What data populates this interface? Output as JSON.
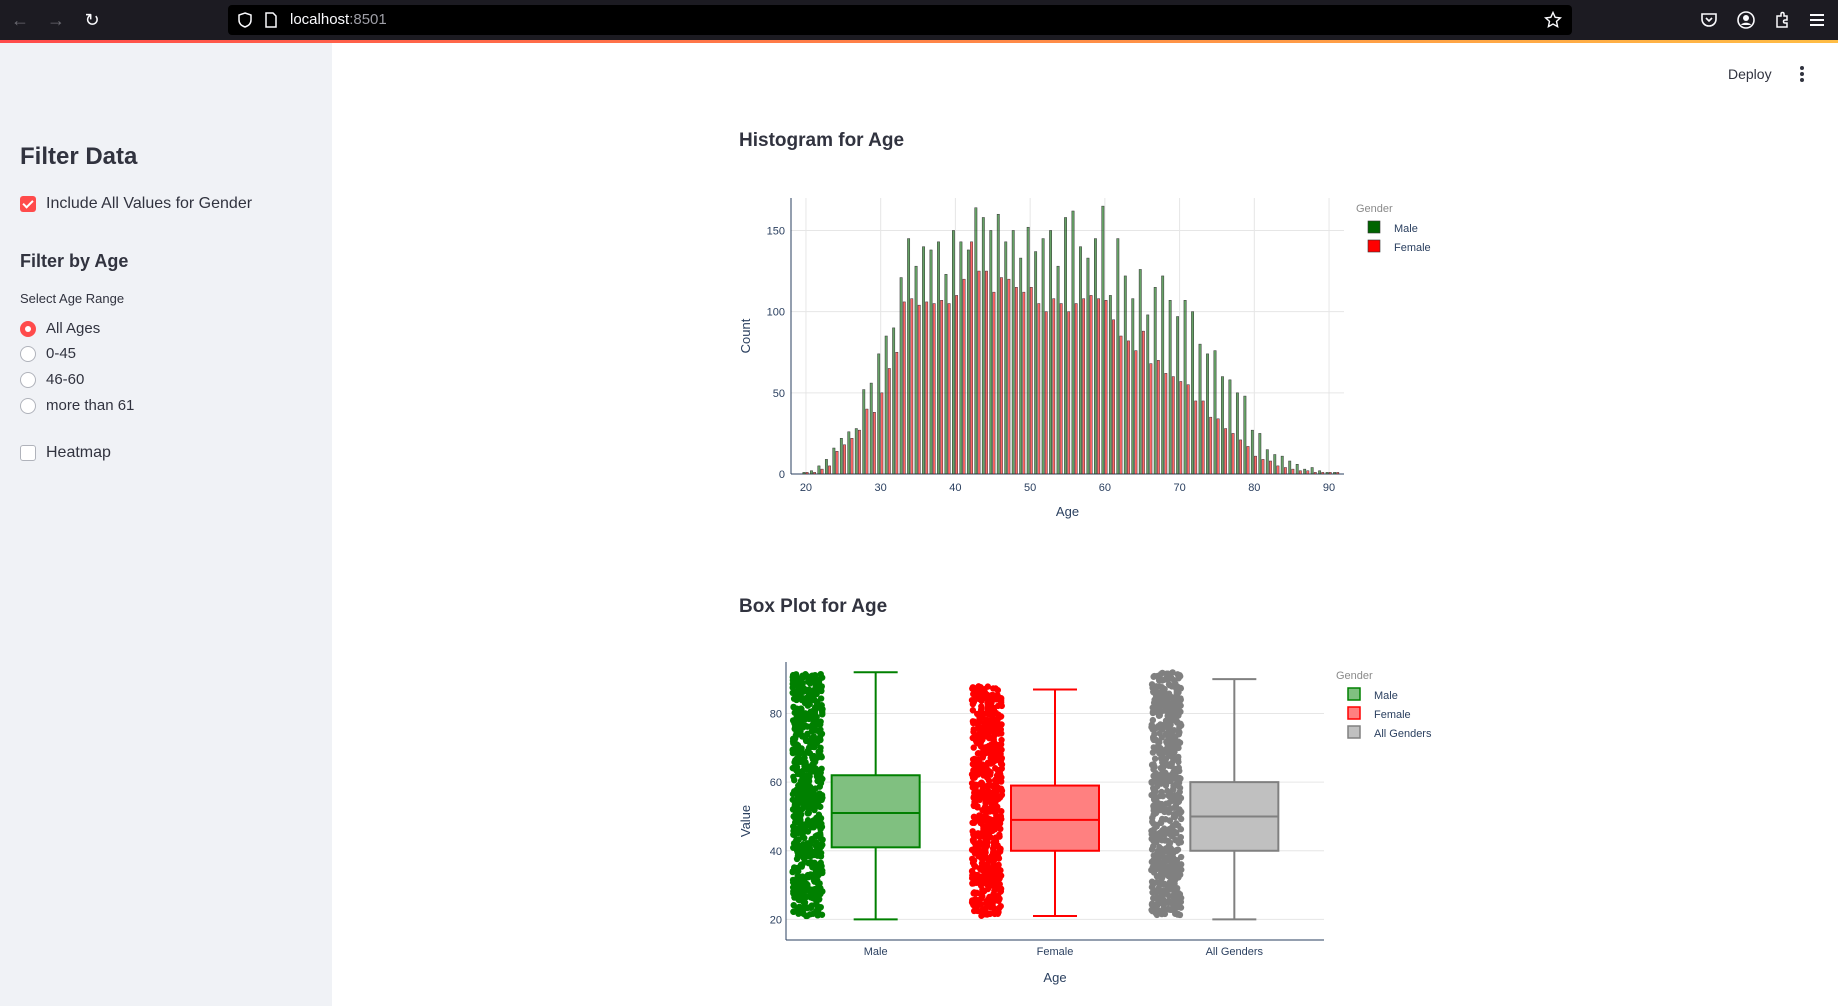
{
  "browser": {
    "url_host": "localhost",
    "url_port": ":8501"
  },
  "app": {
    "deploy_label": "Deploy"
  },
  "sidebar": {
    "title": "Filter Data",
    "include_all_label": "Include All Values for Gender",
    "include_all_checked": true,
    "filter_by_age_title": "Filter by Age",
    "select_range_label": "Select Age Range",
    "age_options": [
      "All Ages",
      "0-45",
      "46-60",
      "more than 61"
    ],
    "selected_age_option": "All Ages",
    "heatmap_label": "Heatmap",
    "heatmap_checked": false
  },
  "histogram": {
    "section_title": "Histogram for Age",
    "chart_data": {
      "type": "bar",
      "xlabel": "Age",
      "ylabel": "Count",
      "xlim": [
        18,
        92
      ],
      "ylim": [
        0,
        170
      ],
      "x_ticks": [
        20,
        30,
        40,
        50,
        60,
        70,
        80,
        90
      ],
      "y_ticks": [
        0,
        50,
        100,
        150
      ],
      "legend_title": "Gender",
      "legend_position": "top-right",
      "grid": true,
      "x": [
        20,
        21,
        22,
        23,
        24,
        25,
        26,
        27,
        28,
        29,
        30,
        31,
        32,
        33,
        34,
        35,
        36,
        37,
        38,
        39,
        40,
        41,
        42,
        43,
        44,
        45,
        46,
        47,
        48,
        49,
        50,
        51,
        52,
        53,
        54,
        55,
        56,
        57,
        58,
        59,
        60,
        61,
        62,
        63,
        64,
        65,
        66,
        67,
        68,
        69,
        70,
        71,
        72,
        73,
        74,
        75,
        76,
        77,
        78,
        79,
        80,
        81,
        82,
        83,
        84,
        85,
        86,
        87,
        88,
        89,
        90,
        91
      ],
      "series": [
        {
          "name": "Male",
          "color": "#006400",
          "values": [
            1,
            2,
            5,
            9,
            16,
            22,
            26,
            28,
            52,
            56,
            74,
            85,
            90,
            121,
            145,
            128,
            140,
            138,
            143,
            123,
            150,
            143,
            138,
            164,
            158,
            150,
            160,
            143,
            150,
            133,
            152,
            137,
            145,
            150,
            128,
            158,
            162,
            140,
            133,
            145,
            165,
            110,
            145,
            122,
            108,
            126,
            98,
            115,
            122,
            107,
            97,
            107,
            100,
            80,
            74,
            76,
            60,
            58,
            50,
            48,
            27,
            25,
            15,
            12,
            11,
            8,
            6,
            3,
            4,
            2,
            1,
            1
          ]
        },
        {
          "name": "Female",
          "color": "#ff0000",
          "values": [
            1,
            1,
            3,
            5,
            14,
            18,
            22,
            27,
            40,
            38,
            50,
            65,
            75,
            106,
            108,
            104,
            106,
            105,
            107,
            105,
            110,
            120,
            143,
            125,
            125,
            112,
            121,
            120,
            115,
            112,
            115,
            105,
            100,
            108,
            105,
            100,
            105,
            108,
            110,
            108,
            107,
            95,
            85,
            82,
            76,
            88,
            68,
            70,
            62,
            60,
            57,
            55,
            45,
            45,
            35,
            34,
            28,
            25,
            21,
            17,
            11,
            9,
            8,
            5,
            4,
            3,
            2,
            2,
            1,
            1,
            1,
            1
          ]
        }
      ]
    }
  },
  "boxplot": {
    "section_title": "Box Plot for Age",
    "chart_data": {
      "type": "box",
      "xlabel": "Age",
      "ylabel": "Value",
      "ylim": [
        14,
        95
      ],
      "y_ticks": [
        20,
        40,
        60,
        80
      ],
      "categories": [
        "Male",
        "Female",
        "All Genders"
      ],
      "legend_title": "Gender",
      "legend_position": "top-right",
      "grid": true,
      "series": [
        {
          "name": "Male",
          "color": "#008000",
          "fill": "#80c080",
          "min": 20,
          "q1": 41,
          "median": 51,
          "q3": 62,
          "max": 92,
          "points_min": 21,
          "points_max": 92
        },
        {
          "name": "Female",
          "color": "#ff0000",
          "fill": "#ff8080",
          "min": 21,
          "q1": 40,
          "median": 49,
          "q3": 59,
          "max": 87,
          "points_min": 21,
          "points_max": 88
        },
        {
          "name": "All Genders",
          "color": "#808080",
          "fill": "#c0c0c0",
          "min": 20,
          "q1": 40,
          "median": 50,
          "q3": 60,
          "max": 90,
          "points_min": 21,
          "points_max": 92
        }
      ]
    }
  }
}
